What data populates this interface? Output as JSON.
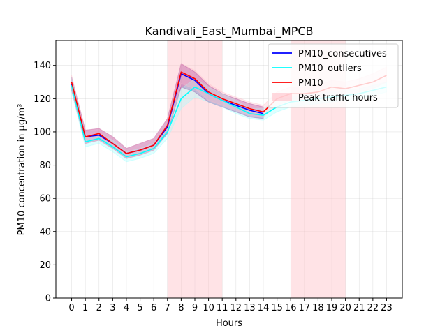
{
  "chart_data": {
    "type": "line",
    "title": "Kandivali_East_Mumbai_MPCB",
    "xlabel": "Hours",
    "ylabel": "PM10 concentration in µg/m³",
    "x": [
      0,
      1,
      2,
      3,
      4,
      5,
      6,
      7,
      8,
      9,
      10,
      11,
      12,
      13,
      14,
      15,
      16,
      17,
      18,
      19,
      20,
      21,
      22,
      23
    ],
    "xlim": [
      -1.15,
      24.15
    ],
    "ylim": [
      0,
      155
    ],
    "yticks": [
      0,
      20,
      40,
      60,
      80,
      100,
      120,
      140
    ],
    "grid": true,
    "legend_position": "top-right",
    "shaded_regions": [
      {
        "name": "Peak traffic hours",
        "x_start": 7,
        "x_end": 11,
        "color": "#ffc0c8"
      },
      {
        "name": "Peak traffic hours",
        "x_start": 16,
        "x_end": 20,
        "color": "#ffc0c8"
      }
    ],
    "series": [
      {
        "name": "PM10_consecutives",
        "color": "#0000ff",
        "values": [
          129,
          97,
          98,
          93,
          87,
          89,
          92,
          103,
          135,
          131,
          123,
          119,
          116,
          113,
          111,
          null,
          null,
          null,
          null,
          null,
          null,
          null,
          null,
          null
        ],
        "band_low": [
          125,
          93,
          95,
          90,
          84,
          86,
          89,
          99,
          127,
          124,
          118,
          115,
          112,
          109,
          108,
          null,
          null,
          null,
          null,
          null,
          null,
          null,
          null,
          null
        ],
        "band_high": [
          133,
          101,
          102,
          97,
          90,
          93,
          96,
          108,
          141,
          136,
          128,
          123,
          120,
          117,
          115,
          null,
          null,
          null,
          null,
          null,
          null,
          null,
          null,
          null
        ],
        "band_color": "#800080"
      },
      {
        "name": "PM10_outliers",
        "color": "#00ffff",
        "values": [
          128,
          94,
          96,
          91,
          85,
          87,
          90,
          100,
          120,
          127,
          123,
          119,
          115,
          111,
          110,
          115,
          118,
          119,
          120,
          121,
          122,
          123,
          125,
          127
        ],
        "band_low": [
          124,
          91,
          93,
          88,
          82,
          84,
          87,
          96,
          114,
          121,
          118,
          115,
          111,
          108,
          107,
          112,
          115,
          116,
          117,
          118,
          119,
          120,
          122,
          124
        ],
        "band_high": [
          133,
          97,
          99,
          95,
          88,
          90,
          93,
          104,
          126,
          132,
          127,
          123,
          119,
          114,
          114,
          119,
          121,
          122,
          123,
          124,
          125,
          126,
          128,
          130
        ],
        "band_color": "#a0ffff"
      },
      {
        "name": "PM10",
        "color": "#ff0000",
        "values": [
          130,
          97,
          99,
          93,
          87,
          89,
          92,
          104,
          136,
          132,
          124,
          120,
          117,
          114,
          112,
          120,
          123,
          123,
          124,
          127,
          126,
          128,
          130,
          134
        ],
        "band_low": [
          126,
          93,
          95,
          90,
          84,
          86,
          89,
          100,
          129,
          126,
          119,
          116,
          113,
          110,
          109,
          116,
          119,
          119,
          120,
          123,
          122,
          124,
          126,
          130
        ],
        "band_high": [
          134,
          101,
          102,
          97,
          90,
          93,
          96,
          108,
          141,
          137,
          129,
          124,
          121,
          118,
          116,
          124,
          127,
          127,
          128,
          131,
          130,
          132,
          135,
          139
        ],
        "band_color": "#ffc0cb"
      }
    ],
    "legend": [
      "PM10_consecutives",
      "PM10_outliers",
      "PM10",
      "Peak traffic hours"
    ]
  }
}
